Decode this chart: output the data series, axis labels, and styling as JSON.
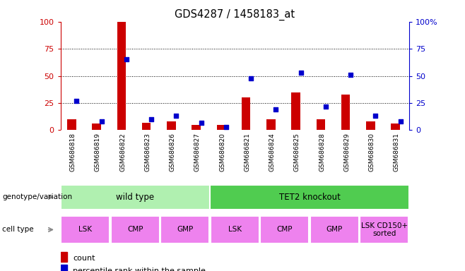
{
  "title": "GDS4287 / 1458183_at",
  "samples": [
    "GSM686818",
    "GSM686819",
    "GSM686822",
    "GSM686823",
    "GSM686826",
    "GSM686827",
    "GSM686820",
    "GSM686821",
    "GSM686824",
    "GSM686825",
    "GSM686828",
    "GSM686829",
    "GSM686830",
    "GSM686831"
  ],
  "counts": [
    10,
    6,
    100,
    7,
    8,
    5,
    5,
    30,
    10,
    35,
    10,
    33,
    8,
    6
  ],
  "percentiles": [
    27,
    8,
    65,
    10,
    13,
    7,
    3,
    48,
    19,
    53,
    22,
    51,
    13,
    8
  ],
  "bar_color": "#cc0000",
  "dot_color": "#0000cc",
  "ylim_left": [
    0,
    100
  ],
  "ylim_right": [
    0,
    100
  ],
  "yticks": [
    0,
    25,
    50,
    75,
    100
  ],
  "grid_values": [
    25,
    50,
    75
  ],
  "genotype_groups": [
    {
      "label": "wild type",
      "start": 0,
      "end": 5,
      "color": "#b0f0b0"
    },
    {
      "label": "TET2 knockout",
      "start": 6,
      "end": 13,
      "color": "#50cc50"
    }
  ],
  "cell_type_groups": [
    {
      "label": "LSK",
      "start": 0,
      "end": 1,
      "color": "#ee82ee"
    },
    {
      "label": "CMP",
      "start": 2,
      "end": 3,
      "color": "#ee82ee"
    },
    {
      "label": "GMP",
      "start": 4,
      "end": 5,
      "color": "#ee82ee"
    },
    {
      "label": "LSK",
      "start": 6,
      "end": 7,
      "color": "#ee82ee"
    },
    {
      "label": "CMP",
      "start": 8,
      "end": 9,
      "color": "#ee82ee"
    },
    {
      "label": "GMP",
      "start": 10,
      "end": 11,
      "color": "#ee82ee"
    },
    {
      "label": "LSK CD150+\nsorted",
      "start": 12,
      "end": 13,
      "color": "#ee82ee"
    }
  ],
  "left_ylabel_color": "#cc0000",
  "right_ylabel_color": "#0000cc",
  "sample_bg_color": "#d3d3d3",
  "legend_count_label": "count",
  "legend_percentile_label": "percentile rank within the sample",
  "genotype_label": "genotype/variation",
  "celltype_label": "cell type",
  "arrow_color": "#888888"
}
